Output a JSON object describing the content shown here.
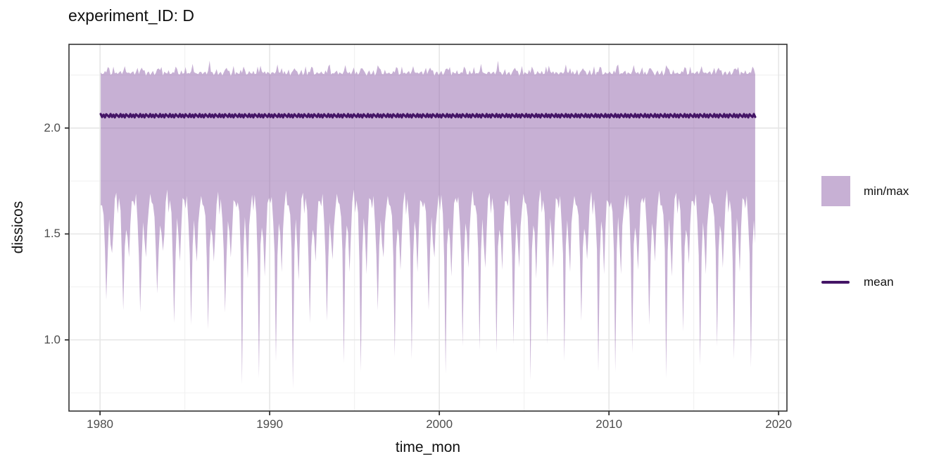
{
  "chart_data": {
    "type": "area",
    "title": "experiment_ID: D",
    "xlabel": "time_mon",
    "ylabel": "dissicos",
    "xlim": [
      1978.17,
      2020.49
    ],
    "ylim": [
      0.664,
      2.395
    ],
    "x_ticks": [
      1980,
      1990,
      2000,
      2010,
      2020
    ],
    "x_tick_labels": [
      "1980",
      "1990",
      "2000",
      "2010",
      "2020"
    ],
    "x_minor_ticks": [
      1985,
      1995,
      2005,
      2015
    ],
    "y_ticks": [
      2.0,
      1.5,
      1.0
    ],
    "y_tick_labels": [
      "2.0",
      "1.5",
      "1.0"
    ],
    "y_minor_ticks": [
      2.25,
      1.75,
      1.25,
      0.75
    ],
    "grid": true,
    "legend_position": "right",
    "legend": {
      "entries": [
        {
          "label": "min/max",
          "swatch": "fill"
        },
        {
          "label": "mean",
          "swatch": "line"
        }
      ]
    },
    "sampling": "monthly",
    "x_start": 1980.0,
    "x_end": 2018.7,
    "series_names": [
      "max",
      "mean",
      "min"
    ],
    "max_base": 2.258,
    "max_month_shape": [
      0.0,
      0.003,
      -0.004,
      0.002,
      0.008,
      0.03,
      0.012,
      0.0,
      -0.005,
      0.002,
      0.005,
      -0.002
    ],
    "max_jitter_cycle": [
      0.004,
      -0.006,
      0.002,
      0.009,
      -0.004,
      0.0,
      0.012,
      -0.007,
      0.003,
      0.03,
      -0.005,
      0.006,
      -0.003,
      0.001,
      0.015,
      -0.006,
      0.002
    ],
    "mean_base": 2.058,
    "mean_wiggle_cycle": [
      0.008,
      -0.006,
      0.005,
      -0.008,
      0.007,
      0.0,
      -0.006
    ],
    "month_frac": [
      0.04,
      0.12,
      0.21,
      0.29,
      0.37,
      0.46,
      0.54,
      0.62,
      0.71,
      0.79,
      0.87,
      0.96
    ],
    "min_month_template": [
      1.62,
      1.66,
      1.58,
      1.4,
      "dip1",
      1.42,
      1.55,
      1.48,
      "dip2",
      1.52,
      1.64,
      1.68
    ],
    "min_jitter_cycle": [
      0.015,
      -0.025,
      0.01,
      0.03,
      -0.02,
      0.0,
      0.02,
      -0.03,
      0.005,
      -0.01,
      0.025
    ],
    "years": [
      {
        "year": 1980,
        "dip1": 1.19,
        "dip2": 1.41
      },
      {
        "year": 1981,
        "dip1": 1.14,
        "dip2": 1.39
      },
      {
        "year": 1982,
        "dip1": 1.13,
        "dip2": 1.39
      },
      {
        "year": 1983,
        "dip1": 1.22,
        "dip2": 1.42
      },
      {
        "year": 1984,
        "dip1": 1.08,
        "dip2": 1.37
      },
      {
        "year": 1985,
        "dip1": 1.07,
        "dip2": 1.37
      },
      {
        "year": 1986,
        "dip1": 1.05,
        "dip2": 1.37
      },
      {
        "year": 1987,
        "dip1": 1.13,
        "dip2": 1.39
      },
      {
        "year": 1988,
        "dip1": 0.79,
        "dip2": 1.29
      },
      {
        "year": 1989,
        "dip1": 0.82,
        "dip2": 1.3
      },
      {
        "year": 1990,
        "dip1": 0.9,
        "dip2": 1.32
      },
      {
        "year": 1991,
        "dip1": 0.77,
        "dip2": 1.28
      },
      {
        "year": 1992,
        "dip1": 1.08,
        "dip2": 1.37
      },
      {
        "year": 1993,
        "dip1": 1.09,
        "dip2": 1.38
      },
      {
        "year": 1994,
        "dip1": 0.89,
        "dip2": 1.32
      },
      {
        "year": 1995,
        "dip1": 0.85,
        "dip2": 1.31
      },
      {
        "year": 1996,
        "dip1": 1.14,
        "dip2": 1.39
      },
      {
        "year": 1997,
        "dip1": 0.92,
        "dip2": 1.33
      },
      {
        "year": 1998,
        "dip1": 0.91,
        "dip2": 1.32
      },
      {
        "year": 1999,
        "dip1": 1.14,
        "dip2": 1.39
      },
      {
        "year": 2000,
        "dip1": 0.84,
        "dip2": 1.3
      },
      {
        "year": 2001,
        "dip1": 0.97,
        "dip2": 1.34
      },
      {
        "year": 2002,
        "dip1": 0.95,
        "dip2": 1.34
      },
      {
        "year": 2003,
        "dip1": 0.94,
        "dip2": 1.33
      },
      {
        "year": 2004,
        "dip1": 0.98,
        "dip2": 1.34
      },
      {
        "year": 2005,
        "dip1": 0.81,
        "dip2": 1.29
      },
      {
        "year": 2006,
        "dip1": 0.98,
        "dip2": 1.34
      },
      {
        "year": 2007,
        "dip1": 0.9,
        "dip2": 1.32
      },
      {
        "year": 2008,
        "dip1": 1.09,
        "dip2": 1.38
      },
      {
        "year": 2009,
        "dip1": 0.85,
        "dip2": 1.31
      },
      {
        "year": 2010,
        "dip1": 0.85,
        "dip2": 1.31
      },
      {
        "year": 2011,
        "dip1": 0.94,
        "dip2": 1.33
      },
      {
        "year": 2012,
        "dip1": 1.07,
        "dip2": 1.37
      },
      {
        "year": 2013,
        "dip1": 0.82,
        "dip2": 1.3
      },
      {
        "year": 2014,
        "dip1": 1.04,
        "dip2": 1.36
      },
      {
        "year": 2015,
        "dip1": 0.88,
        "dip2": 1.31
      },
      {
        "year": 2016,
        "dip1": 0.97,
        "dip2": 1.34
      },
      {
        "year": 2017,
        "dip1": 0.91,
        "dip2": 1.32
      },
      {
        "year": 2018,
        "dip1": 0.87,
        "dip2": 1.31
      }
    ]
  },
  "colors": {
    "ribbon_fill": "#c7b0d4",
    "ribbon_fill_rgba": "rgba(143,98,170,0.5)",
    "mean_line": "#441566",
    "grid_major": "#e6e6e6",
    "grid_minor": "#f1f1f1",
    "panel_border": "#333333",
    "axis_tick": "#333333",
    "tick_label": "#4d4d4d",
    "text": "#111111",
    "background": "#ffffff"
  }
}
